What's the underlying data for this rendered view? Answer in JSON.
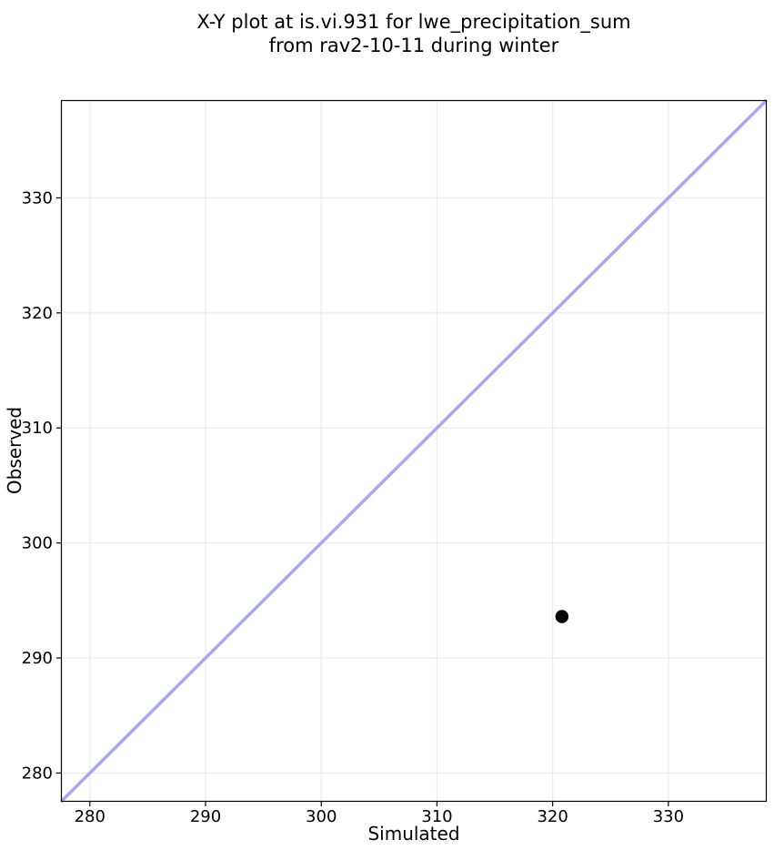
{
  "title": {
    "line1": "X-Y plot at is.vi.931 for lwe_precipitation_sum",
    "line2": "from rav2-10-11 during winter"
  },
  "chart_data": {
    "type": "scatter",
    "title": "X-Y plot at is.vi.931 for lwe_precipitation_sum\nfrom rav2-10-11 during winter",
    "xlabel": "Simulated",
    "ylabel": "Observed",
    "xlim": [
      277.5,
      338.5
    ],
    "ylim": [
      277.5,
      338.5
    ],
    "xticks": [
      280,
      290,
      300,
      310,
      320,
      330
    ],
    "yticks": [
      280,
      290,
      300,
      310,
      320,
      330
    ],
    "grid": true,
    "legend": false,
    "series": [
      {
        "name": "identity-line",
        "kind": "line",
        "color": "#a8a8f0",
        "width": 3.5,
        "points": [
          {
            "x": 277.5,
            "y": 277.5
          },
          {
            "x": 338.5,
            "y": 338.5
          }
        ]
      },
      {
        "name": "observed-vs-simulated",
        "kind": "scatter",
        "marker": "circle",
        "color": "#000000",
        "points": [
          {
            "x": 320.8,
            "y": 293.6
          }
        ]
      }
    ],
    "colors": {
      "background": "#ffffff",
      "grid": "#ededed",
      "spine": "#000000",
      "tick": "#000000",
      "identity_line": "#a8a8f0",
      "point": "#000000"
    }
  }
}
